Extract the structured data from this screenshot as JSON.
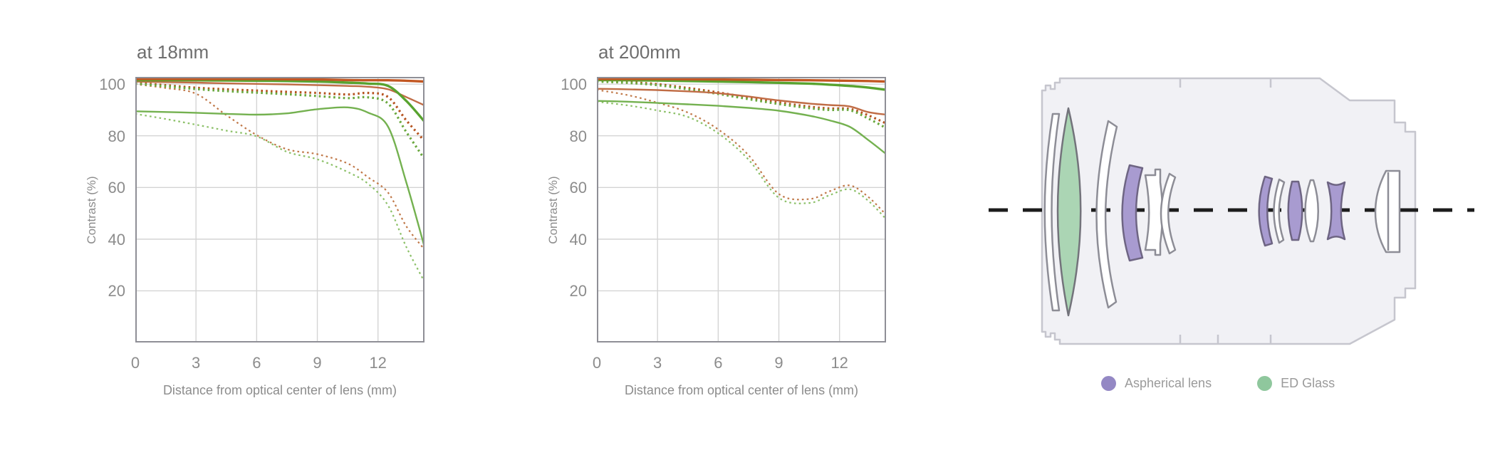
{
  "page": {
    "background": "#ffffff"
  },
  "chart_data": [
    {
      "type": "line",
      "title": "at 18mm",
      "xlabel": "Distance from optical center of lens (mm)",
      "ylabel": "Contrast (%)",
      "x_ticks": [
        0,
        3,
        6,
        9,
        12
      ],
      "y_ticks": [
        100,
        80,
        60,
        40,
        20
      ],
      "xlim": [
        0,
        14.3
      ],
      "ylim": [
        0,
        102.8
      ],
      "grid": true,
      "legend_position": "none",
      "x": [
        0,
        1.5,
        3,
        4.5,
        6,
        7.5,
        9,
        10.5,
        11.5,
        12.5,
        13.4,
        14.3
      ],
      "series": [
        {
          "name": "orange-dotted-thin-30lpmm-meridional",
          "color": "#c07848",
          "style": "dotted",
          "width": 2.2,
          "values": [
            100,
            98.5,
            96.3,
            88,
            80.3,
            74.8,
            72.9,
            69.3,
            64,
            58,
            45,
            36
          ]
        },
        {
          "name": "green-dotted-thin-30lpmm-meridional",
          "color": "#8cc068",
          "style": "dotted",
          "width": 2.2,
          "values": [
            88.5,
            86.5,
            84.3,
            82,
            79.8,
            73.8,
            70.9,
            66,
            61.5,
            53,
            37,
            23.5
          ]
        },
        {
          "name": "orange-dotted-thick-10lpmm-meridional",
          "color": "#b5531f",
          "style": "dotted",
          "width": 3.2,
          "values": [
            100.6,
            99.6,
            98.6,
            98,
            97.5,
            97,
            96.6,
            96,
            96.6,
            95,
            86,
            78
          ]
        },
        {
          "name": "green-dotted-thick-10lpmm-meridional",
          "color": "#6aa83e",
          "style": "dotted",
          "width": 3.2,
          "values": [
            100.2,
            99.2,
            98.1,
            97.3,
            96.7,
            96.1,
            95.4,
            94.6,
            94.9,
            92.5,
            81.5,
            71
          ]
        },
        {
          "name": "green-solid-thin-30lpmm-sagittal",
          "color": "#74b150",
          "style": "solid",
          "width": 2.4,
          "values": [
            89.5,
            89.2,
            88.9,
            88.5,
            88.2,
            88.7,
            90.3,
            91,
            89,
            83.5,
            62,
            37
          ]
        },
        {
          "name": "orange-solid-thin-30lpmm-sagittal",
          "color": "#c06c45",
          "style": "solid",
          "width": 2.4,
          "values": [
            101,
            100.8,
            100.6,
            100.3,
            100.1,
            99.9,
            99.6,
            99.3,
            99,
            98,
            95,
            91.8
          ]
        },
        {
          "name": "green-solid-thick-10lpmm-sagittal",
          "color": "#58a32f",
          "style": "solid",
          "width": 3.4,
          "values": [
            101.5,
            101.5,
            101.5,
            101.4,
            101.3,
            101.2,
            101,
            100.6,
            100.2,
            99.3,
            93.5,
            85.5
          ]
        },
        {
          "name": "orange-solid-thick-10lpmm-sagittal",
          "color": "#c25722",
          "style": "solid",
          "width": 3.4,
          "values": [
            102,
            102,
            102,
            102,
            102,
            101.9,
            101.8,
            101.6,
            101.5,
            101.5,
            101.3,
            101
          ]
        }
      ]
    },
    {
      "type": "line",
      "title": "at 200mm",
      "xlabel": "Distance from optical center of lens (mm)",
      "ylabel": "Contrast (%)",
      "x_ticks": [
        0,
        3,
        6,
        9,
        12
      ],
      "y_ticks": [
        100,
        80,
        60,
        40,
        20
      ],
      "xlim": [
        0,
        14.3
      ],
      "ylim": [
        0,
        102.8
      ],
      "grid": true,
      "legend_position": "none",
      "x": [
        0,
        1.5,
        3,
        4.5,
        6,
        7.5,
        9,
        10.5,
        11.5,
        12.5,
        13.4,
        14.3
      ],
      "series": [
        {
          "name": "orange-dotted-thin-30lpmm-meridional",
          "color": "#c07848",
          "style": "dotted",
          "width": 2.2,
          "values": [
            97.8,
            95.8,
            92.8,
            89,
            82.5,
            72.5,
            57.5,
            55.5,
            58.5,
            60.8,
            56.5,
            49.5
          ]
        },
        {
          "name": "green-dotted-thin-30lpmm-meridional",
          "color": "#8cc068",
          "style": "dotted",
          "width": 2.2,
          "values": [
            93.2,
            91.8,
            89.8,
            87.3,
            81,
            70.8,
            56,
            54,
            57,
            59.3,
            55,
            47.8
          ]
        },
        {
          "name": "orange-dotted-thick-10lpmm-meridional",
          "color": "#b5531f",
          "style": "dotted",
          "width": 3.2,
          "values": [
            101.3,
            100.8,
            100,
            98.5,
            96.8,
            94.8,
            92.9,
            91.3,
            90.6,
            90.4,
            88,
            84.8
          ]
        },
        {
          "name": "green-dotted-thick-10lpmm-meridional",
          "color": "#6aa83e",
          "style": "dotted",
          "width": 3.2,
          "values": [
            101,
            100.5,
            99.6,
            98,
            96.2,
            94.2,
            92.3,
            90.7,
            90,
            89.9,
            86.8,
            83
          ]
        },
        {
          "name": "green-solid-thin-30lpmm-sagittal",
          "color": "#74b150",
          "style": "solid",
          "width": 2.4,
          "values": [
            93.5,
            93.2,
            92.7,
            92.2,
            91.6,
            90.8,
            89.7,
            87.8,
            86,
            83.5,
            78.5,
            73
          ]
        },
        {
          "name": "orange-solid-thin-30lpmm-sagittal",
          "color": "#c06c45",
          "style": "solid",
          "width": 2.4,
          "values": [
            98.2,
            98,
            97.7,
            97.2,
            96.5,
            95.2,
            93.7,
            92.5,
            91.9,
            91.4,
            89.2,
            88.2
          ]
        },
        {
          "name": "green-solid-thick-10lpmm-sagittal",
          "color": "#58a32f",
          "style": "solid",
          "width": 3.4,
          "values": [
            101.6,
            101.5,
            101.4,
            101.2,
            101,
            100.8,
            100.5,
            100.2,
            99.8,
            99.3,
            98.7,
            97.8
          ]
        },
        {
          "name": "orange-solid-thick-10lpmm-sagittal",
          "color": "#c25722",
          "style": "solid",
          "width": 3.4,
          "values": [
            102,
            102,
            102,
            101.9,
            101.8,
            101.7,
            101.6,
            101.5,
            101.4,
            101.3,
            101.2,
            101
          ]
        }
      ]
    }
  ],
  "lens_diagram": {
    "legend": [
      {
        "label": "Aspherical lens",
        "color": "#9488c4"
      },
      {
        "label": "ED Glass",
        "color": "#8fc79d"
      }
    ],
    "element_colors": {
      "aspherical": "#a89bd0",
      "aspherical_outline": "#6e6583",
      "ed_glass": "#abd5b4",
      "ed_outline": "#73737b",
      "standard": "#ffffff",
      "outline": "#8d8d96",
      "barrel_fill": "#f1f1f5",
      "barrel_outline": "#c6c6ce",
      "axis": "#1c1c1c"
    }
  },
  "style": {
    "grid_color": "#d4d4d4",
    "plot_border_color": "#8f8f96"
  }
}
